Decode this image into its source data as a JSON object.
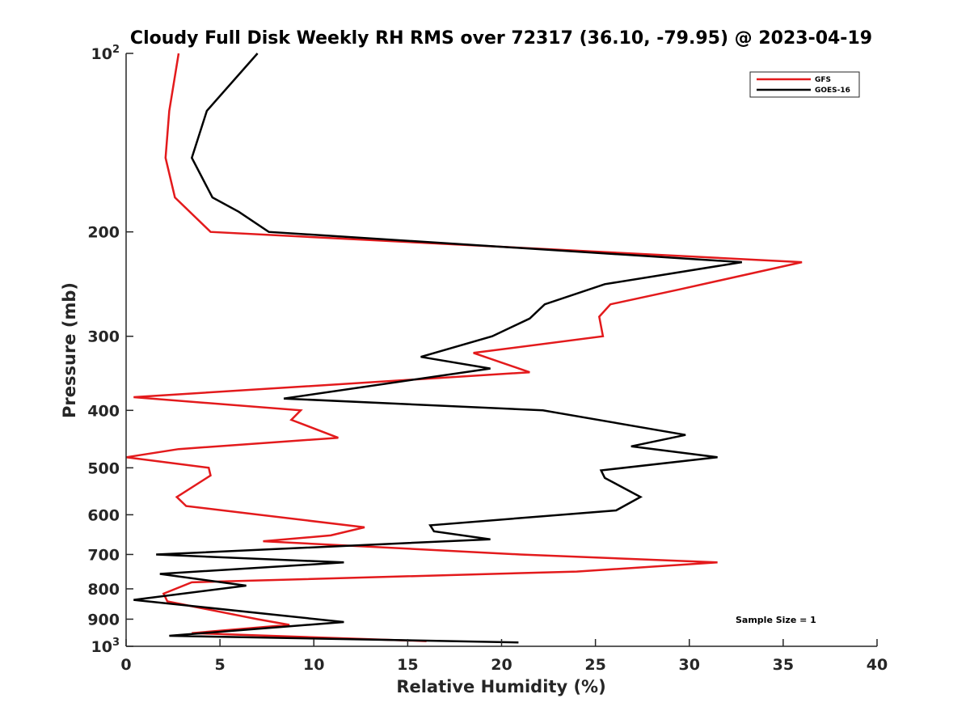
{
  "chart_data": {
    "type": "line",
    "title": "Cloudy Full Disk Weekly RH RMS over 72317 (36.10, -79.95) @ 2023-04-19",
    "xlabel": "Relative Humidity (%)",
    "ylabel": "Pressure (mb)",
    "xlim": [
      0,
      40
    ],
    "ylim": [
      100,
      1000
    ],
    "yscale": "log",
    "y_reversed": true,
    "xticks": [
      "0",
      "5",
      "10",
      "15",
      "20",
      "25",
      "30",
      "35",
      "40"
    ],
    "yticks": [
      {
        "value": 100,
        "base": "10",
        "exp": "2"
      },
      {
        "value": 200,
        "label": "200"
      },
      {
        "value": 300,
        "label": "300"
      },
      {
        "value": 400,
        "label": "400"
      },
      {
        "value": 500,
        "label": "500"
      },
      {
        "value": 600,
        "label": "600"
      },
      {
        "value": 700,
        "label": "700"
      },
      {
        "value": 800,
        "label": "800"
      },
      {
        "value": 900,
        "label": "900"
      },
      {
        "value": 1000,
        "base": "10",
        "exp": "3"
      }
    ],
    "grid": false,
    "legend_position": "top-right",
    "annotation": "Sample Size = 1",
    "series": [
      {
        "name": "GFS",
        "color": "#e31a1c",
        "points": [
          [
            2.8,
            100
          ],
          [
            2.3,
            125
          ],
          [
            2.1,
            150
          ],
          [
            2.6,
            175
          ],
          [
            4.5,
            200
          ],
          [
            36.0,
            225
          ],
          [
            29.5,
            250
          ],
          [
            25.8,
            265
          ],
          [
            25.2,
            278
          ],
          [
            25.4,
            300
          ],
          [
            18.5,
            320
          ],
          [
            21.5,
            345
          ],
          [
            0.4,
            380
          ],
          [
            9.3,
            400
          ],
          [
            8.8,
            415
          ],
          [
            11.3,
            445
          ],
          [
            2.8,
            465
          ],
          [
            0.0,
            480
          ],
          [
            4.4,
            500
          ],
          [
            4.5,
            515
          ],
          [
            2.7,
            560
          ],
          [
            3.2,
            580
          ],
          [
            12.7,
            630
          ],
          [
            10.9,
            650
          ],
          [
            7.3,
            665
          ],
          [
            21.0,
            700
          ],
          [
            31.5,
            722
          ],
          [
            24.0,
            748
          ],
          [
            3.5,
            780
          ],
          [
            2.0,
            815
          ],
          [
            2.2,
            840
          ],
          [
            7.0,
            900
          ],
          [
            8.7,
            920
          ],
          [
            3.5,
            950
          ],
          [
            16.0,
            980
          ]
        ]
      },
      {
        "name": "GOES-16",
        "color": "#000000",
        "points": [
          [
            7.0,
            100
          ],
          [
            4.3,
            125
          ],
          [
            3.5,
            150
          ],
          [
            4.6,
            175
          ],
          [
            6.0,
            185
          ],
          [
            7.6,
            200
          ],
          [
            32.8,
            225
          ],
          [
            25.5,
            245
          ],
          [
            22.3,
            265
          ],
          [
            21.5,
            280
          ],
          [
            19.5,
            300
          ],
          [
            15.7,
            325
          ],
          [
            19.4,
            340
          ],
          [
            8.4,
            382
          ],
          [
            22.2,
            400
          ],
          [
            29.8,
            440
          ],
          [
            26.9,
            460
          ],
          [
            31.5,
            480
          ],
          [
            25.3,
            505
          ],
          [
            25.5,
            520
          ],
          [
            27.4,
            560
          ],
          [
            26.1,
            590
          ],
          [
            16.2,
            625
          ],
          [
            16.4,
            640
          ],
          [
            19.4,
            660
          ],
          [
            1.6,
            700
          ],
          [
            11.6,
            722
          ],
          [
            1.8,
            755
          ],
          [
            6.4,
            790
          ],
          [
            0.4,
            835
          ],
          [
            11.6,
            910
          ],
          [
            2.3,
            960
          ],
          [
            20.9,
            985
          ]
        ]
      }
    ]
  }
}
